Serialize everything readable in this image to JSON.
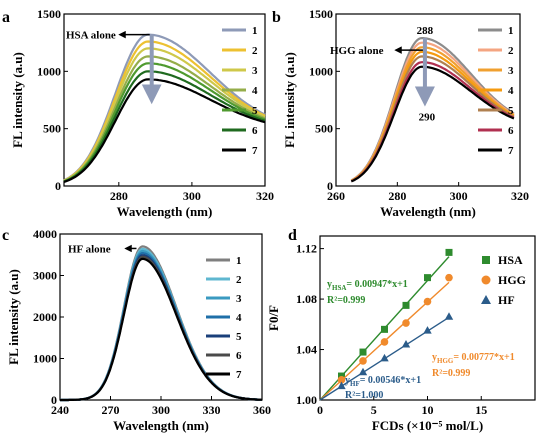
{
  "figure": {
    "background": "#ffffff"
  },
  "chart_data": [
    {
      "panel": "a",
      "type": "line",
      "xlabel": "Wavelength (nm)",
      "ylabel": "FL intensity (a.u)",
      "xlim": [
        265,
        320
      ],
      "ylim": [
        0,
        1500
      ],
      "xticks": [
        280,
        300,
        320
      ],
      "yticks": [
        0,
        500,
        1000,
        1500
      ],
      "grid": false,
      "legend_position": "top-right",
      "annotation": "HSA alone",
      "arrow": {
        "x": 289,
        "y_from": 1320,
        "y_to": 800
      },
      "curve": {
        "peak_x": 288,
        "sigma_left": 9,
        "sigma_right": 17,
        "floor": 480,
        "x_start": 265,
        "x_end": 320
      },
      "series": [
        {
          "name": "1",
          "color": "#8e9ab7",
          "peak": 1320
        },
        {
          "name": "2",
          "color": "#edc131",
          "peak": 1260
        },
        {
          "name": "3",
          "color": "#cfc84a",
          "peak": 1200
        },
        {
          "name": "4",
          "color": "#95ad4a",
          "peak": 1130
        },
        {
          "name": "5",
          "color": "#4f9a2f",
          "peak": 1070
        },
        {
          "name": "6",
          "color": "#1f6a1f",
          "peak": 1000
        },
        {
          "name": "7",
          "color": "#000000",
          "peak": 930
        }
      ]
    },
    {
      "panel": "b",
      "type": "line",
      "xlabel": "Wavelength (nm)",
      "ylabel": "FL intensity (a.u)",
      "xlim": [
        260,
        320
      ],
      "ylim": [
        0,
        1500
      ],
      "xticks": [
        260,
        280,
        300,
        320
      ],
      "yticks": [
        0,
        500,
        1000,
        1500
      ],
      "grid": false,
      "legend_position": "top-right",
      "annotation": "HGG alone",
      "arrow_top_label": "288",
      "arrow_bottom_label": "290",
      "arrow": {
        "x": 289,
        "y_from": 1290,
        "y_to": 780
      },
      "curve": {
        "peak_x": 288,
        "sigma_left": 9,
        "sigma_right": 16,
        "floor": 495,
        "x_start": 265,
        "x_end": 318
      },
      "series": [
        {
          "name": "1",
          "color": "#8c8c8c",
          "peak": 1290
        },
        {
          "name": "2",
          "color": "#f4a582",
          "peak": 1250
        },
        {
          "name": "3",
          "color": "#f0a030",
          "peak": 1210
        },
        {
          "name": "4",
          "color": "#f59b10",
          "peak": 1170
        },
        {
          "name": "5",
          "color": "#b08050",
          "peak": 1130
        },
        {
          "name": "6",
          "color": "#b03050",
          "peak": 1080
        },
        {
          "name": "7",
          "color": "#000000",
          "peak": 1040
        }
      ]
    },
    {
      "panel": "c",
      "type": "line",
      "xlabel": "Wavelength (nm)",
      "ylabel": "FL intensity (a.u)",
      "xlim": [
        240,
        360
      ],
      "ylim": [
        0,
        4000
      ],
      "xticks": [
        240,
        270,
        300,
        330,
        360
      ],
      "yticks": [
        0,
        1000,
        2000,
        3000,
        4000
      ],
      "grid": false,
      "legend_position": "top-right",
      "annotation": "HF alone",
      "curve": {
        "peak_x": 289,
        "sigma_left": 11,
        "sigma_right": 20,
        "floor": 0,
        "x_start": 240,
        "x_end": 360
      },
      "series": [
        {
          "name": "1",
          "color": "#7f7f7f",
          "peak": 3700
        },
        {
          "name": "2",
          "color": "#5fb7d0",
          "peak": 3640
        },
        {
          "name": "3",
          "color": "#3a9ac0",
          "peak": 3590
        },
        {
          "name": "4",
          "color": "#1f6fa8",
          "peak": 3540
        },
        {
          "name": "5",
          "color": "#1a3f7a",
          "peak": 3490
        },
        {
          "name": "6",
          "color": "#4a4a4a",
          "peak": 3450
        },
        {
          "name": "7",
          "color": "#000000",
          "peak": 3400
        }
      ]
    },
    {
      "panel": "d",
      "type": "scatter",
      "xlabel": "FCDs (×10⁻⁵ mol/L)",
      "ylabel": "F0/F",
      "xlim": [
        0,
        20
      ],
      "ylim": [
        1.0,
        1.13
      ],
      "xticks": [
        0,
        5,
        10,
        15
      ],
      "yticks": [
        1.0,
        1.04,
        1.08,
        1.12
      ],
      "ytick_labels": [
        "1.00",
        "1.04",
        "1.08",
        "1.12"
      ],
      "grid": false,
      "legend_position": "top-right",
      "x": [
        2,
        4,
        6,
        8,
        10,
        12
      ],
      "series": [
        {
          "name": "HSA",
          "marker": "square",
          "color": "#2e8b2e",
          "values": [
            1.019,
            1.038,
            1.056,
            1.075,
            1.097,
            1.117
          ],
          "fit_slope": 0.00947,
          "eq_sub": "HSA",
          "eq_rest": "= 0.00947*x+1",
          "r2": "R²=0.999"
        },
        {
          "name": "HGG",
          "marker": "circle",
          "color": "#f08a2c",
          "values": [
            1.016,
            1.031,
            1.046,
            1.061,
            1.078,
            1.097
          ],
          "fit_slope": 0.00777,
          "eq_sub": "HGG",
          "eq_rest": "= 0.00777*x+1",
          "r2": "R²=0.999"
        },
        {
          "name": "HF",
          "marker": "triangle",
          "color": "#2b5c8a",
          "values": [
            1.011,
            1.022,
            1.033,
            1.044,
            1.055,
            1.066
          ],
          "fit_slope": 0.00546,
          "eq_sub": "HF",
          "eq_rest": "= 0.00546*x+1",
          "r2": "R²=1.000"
        }
      ]
    }
  ]
}
